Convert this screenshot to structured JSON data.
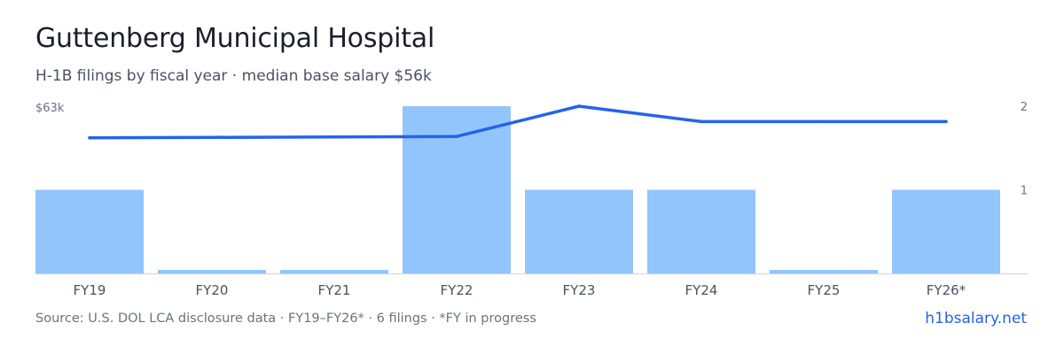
{
  "header": {
    "title": "Guttenberg Municipal Hospital",
    "subtitle": "H-1B filings by fiscal year · median base salary $56k"
  },
  "footer": {
    "source": "Source: U.S. DOL LCA disclosure data · FY19–FY26* · 6 filings · *FY in progress",
    "brand": "h1bsalary.net"
  },
  "colors": {
    "bar": "#93c5fd",
    "line": "#2563eb",
    "axis": "#d1d5db",
    "tick_text": "#6b7280",
    "label_text": "#4a5261"
  },
  "chart_data": {
    "type": "bar",
    "categories": [
      "FY19",
      "FY20",
      "FY21",
      "FY22",
      "FY23",
      "FY24",
      "FY25",
      "FY26*"
    ],
    "series": [
      {
        "type": "bar",
        "axis": "right",
        "values": [
          1,
          0,
          0,
          2,
          1,
          1,
          0,
          1
        ]
      },
      {
        "type": "line",
        "axis": "left",
        "values": [
          56,
          56.1,
          56.2,
          56.3,
          63,
          59.6,
          59.6,
          59.6
        ]
      }
    ],
    "left_axis": {
      "ticks": [
        "$63k"
      ],
      "range": [
        26,
        63
      ]
    },
    "right_axis": {
      "ticks": [
        "2",
        "1"
      ],
      "range": [
        0,
        2
      ]
    },
    "grid": false,
    "legend": "none"
  }
}
